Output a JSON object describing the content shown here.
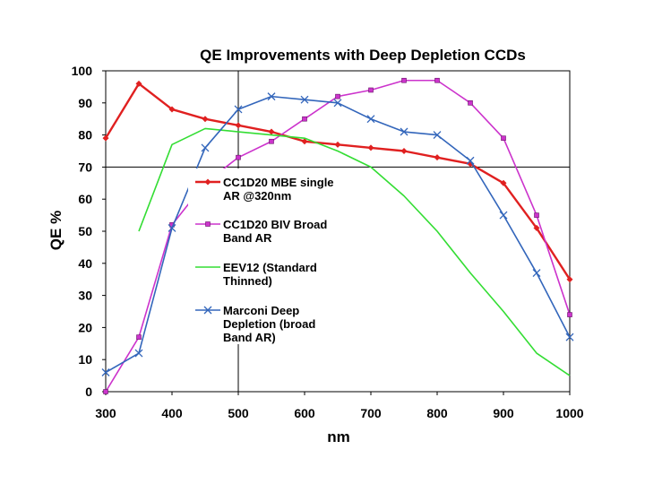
{
  "chart_data": {
    "type": "line",
    "title": "QE Improvements with Deep Depletion CCDs",
    "xlabel": "nm",
    "ylabel": "QE %",
    "xlim": [
      300,
      1000
    ],
    "ylim": [
      0,
      100
    ],
    "xticks": [
      "300",
      "400",
      "500",
      "600",
      "700",
      "800",
      "900",
      "1000"
    ],
    "yticks": [
      "0",
      "10",
      "20",
      "30",
      "40",
      "50",
      "60",
      "70",
      "80",
      "90",
      "100"
    ],
    "grid": "crosshair lines at x=500 and y=70",
    "legend_position": "center-left inside plot",
    "series": [
      {
        "name": "CC1D20 MBE single AR @320nm",
        "legend_lines": [
          "CC1D20 MBE single",
          "AR @320nm"
        ],
        "color": "#e02020",
        "marker": "diamond",
        "x": [
          300,
          350,
          400,
          450,
          500,
          550,
          600,
          650,
          700,
          750,
          800,
          850,
          900,
          950,
          1000
        ],
        "y": [
          79,
          96,
          88,
          85,
          83,
          81,
          78,
          77,
          76,
          75,
          73,
          71,
          65,
          51,
          35
        ]
      },
      {
        "name": "CC1D20 BIV Broad Band AR",
        "legend_lines": [
          "CC1D20 BIV Broad",
          "Band AR"
        ],
        "color": "#cc33cc",
        "marker": "square",
        "x": [
          300,
          350,
          400,
          450,
          500,
          550,
          600,
          650,
          700,
          750,
          800,
          850,
          900,
          950,
          1000
        ],
        "y": [
          0,
          17,
          52,
          65,
          73,
          78,
          85,
          92,
          94,
          97,
          97,
          90,
          79,
          55,
          24
        ]
      },
      {
        "name": "EEV12 (Standard Thinned)",
        "legend_lines": [
          "EEV12 (Standard",
          "Thinned)"
        ],
        "color": "#33dd33",
        "marker": "none",
        "x": [
          350,
          400,
          450,
          500,
          550,
          600,
          650,
          700,
          750,
          800,
          850,
          900,
          950,
          1000
        ],
        "y": [
          50,
          77,
          82,
          81,
          80,
          79,
          75,
          70,
          61,
          50,
          37,
          25,
          12,
          5
        ]
      },
      {
        "name": "Marconi Deep Depletion (broad Band AR)",
        "legend_lines": [
          "Marconi Deep",
          "Depletion (broad",
          "Band AR)"
        ],
        "color": "#3366bb",
        "marker": "x",
        "x": [
          300,
          350,
          400,
          450,
          500,
          550,
          600,
          650,
          700,
          750,
          800,
          850,
          900,
          950,
          1000
        ],
        "y": [
          6,
          12,
          51,
          76,
          88,
          92,
          91,
          90,
          85,
          81,
          80,
          72,
          55,
          37,
          17
        ]
      }
    ]
  }
}
